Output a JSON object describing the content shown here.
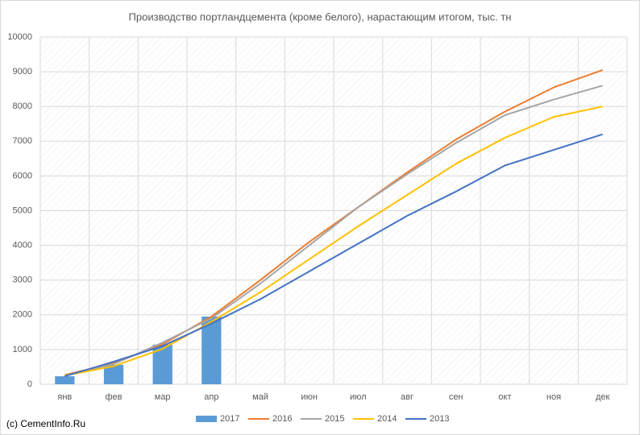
{
  "chart_data": {
    "type": "bar-line",
    "title": "Производство портландцемента (кроме белого), нарастающим итогом, тыс. тн",
    "categories": [
      "янв",
      "фев",
      "мар",
      "апр",
      "май",
      "июн",
      "июл",
      "авг",
      "сен",
      "окт",
      "ноя",
      "дек"
    ],
    "series": [
      {
        "name": "2017",
        "type": "bar",
        "color": "#5b9bd5",
        "values": [
          230,
          560,
          1140,
          1950,
          null,
          null,
          null,
          null,
          null,
          null,
          null,
          null
        ]
      },
      {
        "name": "2016",
        "type": "line",
        "color": "#ed7d31",
        "values": [
          270,
          600,
          1150,
          1950,
          3000,
          4100,
          5100,
          6100,
          7050,
          7850,
          8550,
          9050
        ]
      },
      {
        "name": "2015",
        "type": "line",
        "color": "#a5a5a5",
        "values": [
          260,
          580,
          1200,
          1900,
          2900,
          4000,
          5100,
          6050,
          6950,
          7750,
          8200,
          8600
        ]
      },
      {
        "name": "2014",
        "type": "line",
        "color": "#ffc000",
        "values": [
          250,
          520,
          1020,
          1800,
          2650,
          3600,
          4550,
          5450,
          6350,
          7100,
          7700,
          8000
        ]
      },
      {
        "name": "2013",
        "type": "line",
        "color": "#4472c4",
        "values": [
          230,
          650,
          1100,
          1750,
          2450,
          3250,
          4050,
          4850,
          5550,
          6300,
          6750,
          7200
        ]
      }
    ],
    "ylim": [
      0,
      10000
    ],
    "yticks": [
      0,
      1000,
      2000,
      3000,
      4000,
      5000,
      6000,
      7000,
      8000,
      9000,
      10000
    ],
    "grid": true,
    "legend": "bottom",
    "footer": "(c) CementInfo.Ru"
  }
}
